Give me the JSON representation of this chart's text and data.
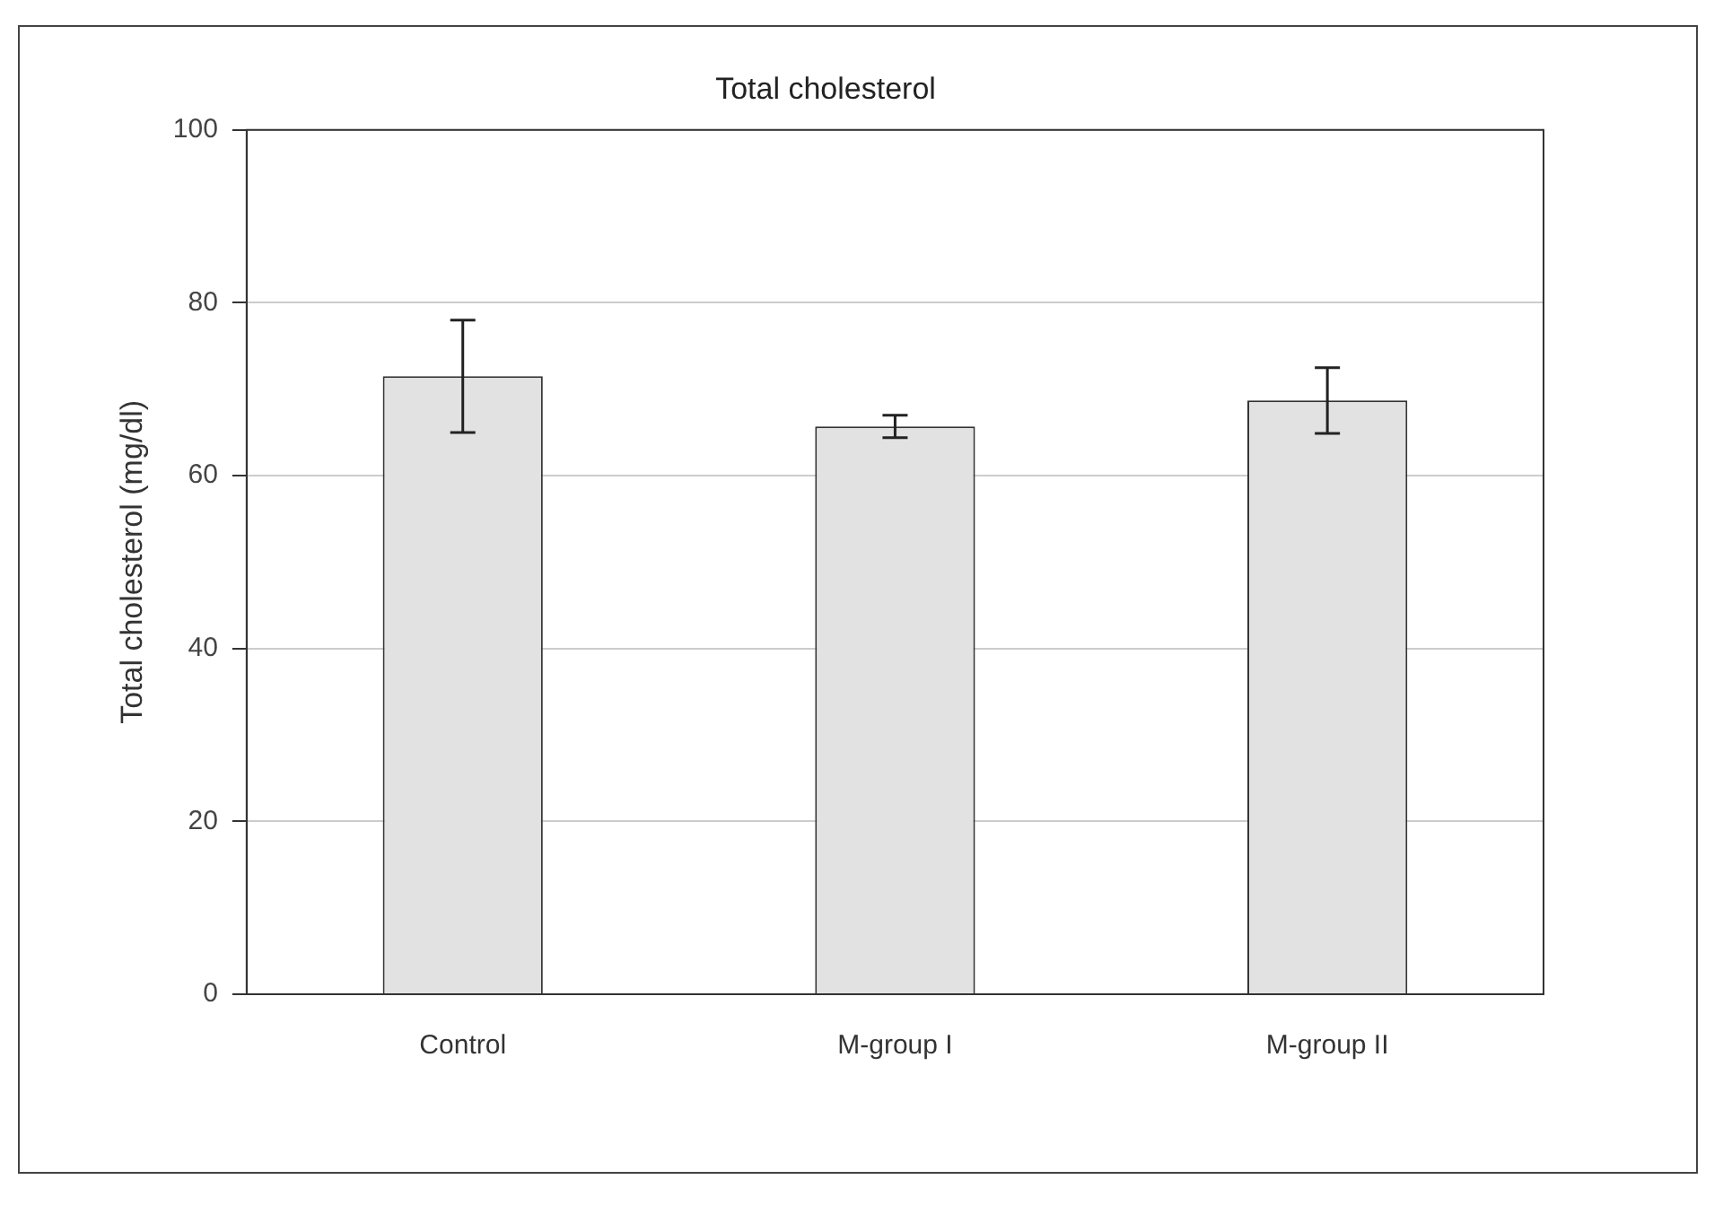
{
  "chart_data": {
    "type": "bar",
    "title": "Total cholesterol",
    "ylabel": "Total cholesterol (mg/dl)",
    "categories": [
      "Control",
      "M-group I",
      "M-group II"
    ],
    "values": [
      71.5,
      65.7,
      68.7
    ],
    "errors": [
      6.5,
      1.3,
      3.8
    ],
    "color": "#e2e2e2",
    "ylim": [
      0,
      100
    ],
    "yticks": [
      0,
      20,
      40,
      60,
      80,
      100
    ],
    "grid": "y"
  }
}
